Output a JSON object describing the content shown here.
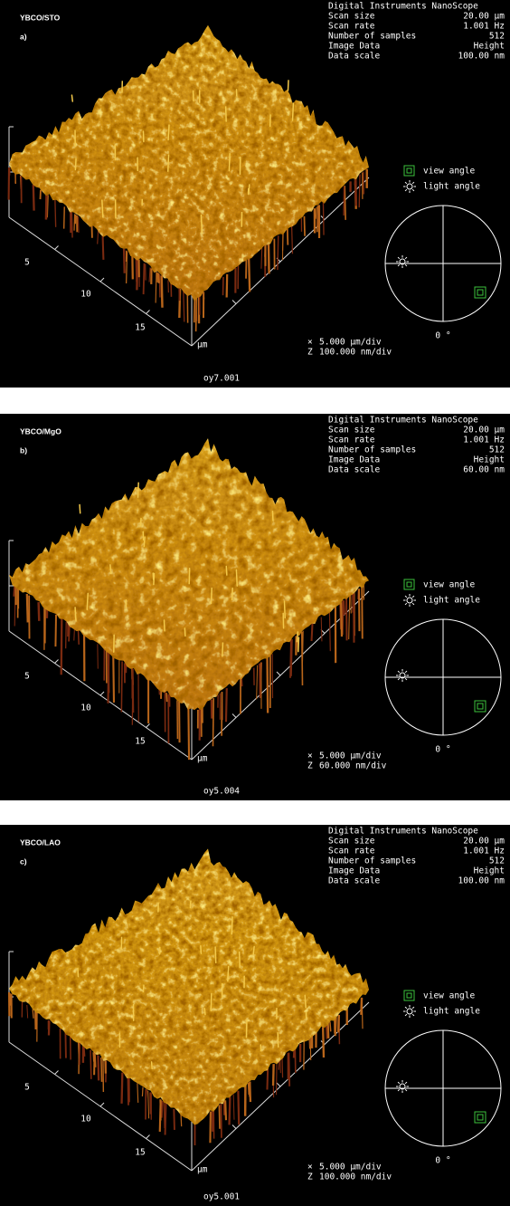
{
  "panels": [
    {
      "label": "YBCO/STO",
      "letter": "a)",
      "header": "Digital Instruments NanoScope",
      "params": [
        {
          "name": "Scan size",
          "value": "20.00 µm"
        },
        {
          "name": "Scan rate",
          "value": "1.001 Hz"
        },
        {
          "name": "Number of samples",
          "value": "512"
        },
        {
          "name": "Image Data",
          "value": "Height"
        },
        {
          "name": "Data scale",
          "value": "100.00 nm"
        }
      ],
      "view_angle": "view angle",
      "light_angle": "light angle",
      "zero_angle": "0 °",
      "axis_ticks": [
        "5",
        "10",
        "15"
      ],
      "axis_unit": "µm",
      "x_scale": {
        "symbol": "×",
        "text": "5.000 µm/div"
      },
      "z_scale": {
        "symbol": "Z",
        "text": "100.000 nm/div"
      },
      "filename": "oy7.001"
    },
    {
      "label": "YBCO/MgO",
      "letter": "b)",
      "header": "Digital Instruments NanoScope",
      "params": [
        {
          "name": "Scan size",
          "value": "20.00 µm"
        },
        {
          "name": "Scan rate",
          "value": "1.001 Hz"
        },
        {
          "name": "Number of samples",
          "value": "512"
        },
        {
          "name": "Image Data",
          "value": "Height"
        },
        {
          "name": "Data scale",
          "value": "60.00 nm"
        }
      ],
      "view_angle": "view angle",
      "light_angle": "light angle",
      "zero_angle": "0 °",
      "axis_ticks": [
        "5",
        "10",
        "15"
      ],
      "axis_unit": "µm",
      "x_scale": {
        "symbol": "×",
        "text": "5.000 µm/div"
      },
      "z_scale": {
        "symbol": "Z",
        "text": "60.000 nm/div"
      },
      "filename": "oy5.004"
    },
    {
      "label": "YBCO/LAO",
      "letter": "c)",
      "header": "Digital Instruments NanoScope",
      "params": [
        {
          "name": "Scan size",
          "value": "20.00 µm"
        },
        {
          "name": "Scan rate",
          "value": "1.001 Hz"
        },
        {
          "name": "Number of samples",
          "value": "512"
        },
        {
          "name": "Image Data",
          "value": "Height"
        },
        {
          "name": "Data scale",
          "value": "100.00 nm"
        }
      ],
      "view_angle": "view angle",
      "light_angle": "light angle",
      "zero_angle": "0 °",
      "axis_ticks": [
        "5",
        "10",
        "15"
      ],
      "axis_unit": "µm",
      "x_scale": {
        "symbol": "×",
        "text": "5.000 µm/div"
      },
      "z_scale": {
        "symbol": "Z",
        "text": "100.000 nm/div"
      },
      "filename": "oy5.001"
    }
  ]
}
